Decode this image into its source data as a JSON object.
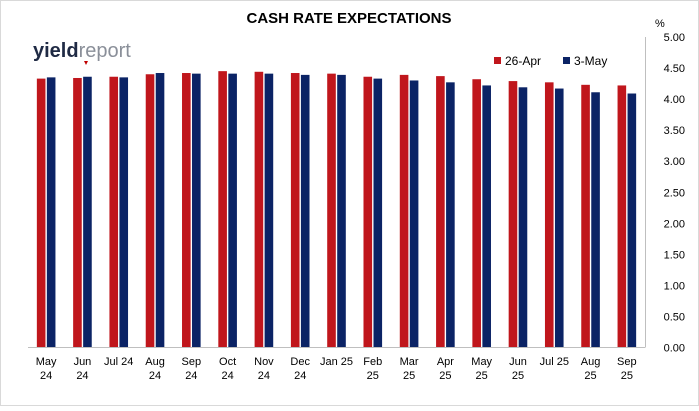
{
  "logo": {
    "part1": "yield",
    "part2": "report",
    "accent_color": "#c00000"
  },
  "chart_data": {
    "type": "bar",
    "title": "CASH RATE EXPECTATIONS",
    "ylabel": "%",
    "ylim": [
      0,
      5
    ],
    "ytick_step": 0.5,
    "ytick_labels": [
      "0.00",
      "0.50",
      "1.00",
      "1.50",
      "2.00",
      "2.50",
      "3.00",
      "3.50",
      "4.00",
      "4.50",
      "5.00"
    ],
    "y_axis_position": "right",
    "grid": false,
    "legend_position": "top-right",
    "categories": [
      [
        "May",
        "24"
      ],
      [
        "Jun",
        "24"
      ],
      [
        "Jul 24"
      ],
      [
        "Aug",
        "24"
      ],
      [
        "Sep",
        "24"
      ],
      [
        "Oct",
        "24"
      ],
      [
        "Nov",
        "24"
      ],
      [
        "Dec",
        "24"
      ],
      [
        "Jan 25"
      ],
      [
        "Feb",
        "25"
      ],
      [
        "Mar",
        "25"
      ],
      [
        "Apr",
        "25"
      ],
      [
        "May",
        "25"
      ],
      [
        "Jun",
        "25"
      ],
      [
        "Jul 25"
      ],
      [
        "Aug",
        "25"
      ],
      [
        "Sep",
        "25"
      ]
    ],
    "series": [
      {
        "name": "26-Apr",
        "color": "#c0161c",
        "values": [
          4.33,
          4.34,
          4.36,
          4.4,
          4.42,
          4.45,
          4.44,
          4.42,
          4.41,
          4.36,
          4.39,
          4.37,
          4.32,
          4.29,
          4.27,
          4.23,
          4.22
        ]
      },
      {
        "name": "3-May",
        "color": "#0b2365",
        "values": [
          4.35,
          4.36,
          4.35,
          4.42,
          4.41,
          4.41,
          4.41,
          4.39,
          4.39,
          4.33,
          4.3,
          4.27,
          4.22,
          4.19,
          4.17,
          4.11,
          4.09
        ]
      }
    ]
  }
}
